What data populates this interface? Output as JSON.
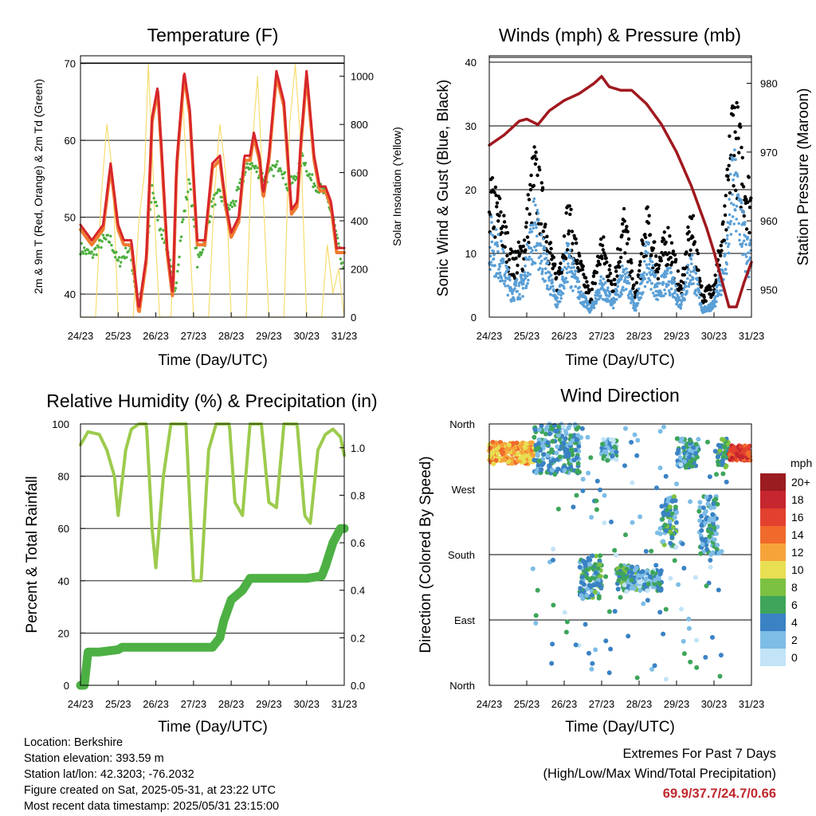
{
  "x_ticks": [
    "24/23",
    "25/23",
    "26/23",
    "27/23",
    "28/23",
    "29/23",
    "30/23",
    "31/23"
  ],
  "temperature_panel": {
    "title": "Temperature (F)",
    "xlabel": "Time (Day/UTC)",
    "ylabel_left": "2m & 9m T (Red, Orange) & 2m Td (Green)",
    "ylabel_right": "Solar Insolation (Yellow)",
    "yticks_left": [
      "40",
      "50",
      "60",
      "70"
    ],
    "yticks_right": [
      "0",
      "200",
      "400",
      "600",
      "800",
      "1000"
    ]
  },
  "winds_panel": {
    "title": "Winds (mph) & Pressure (mb)",
    "xlabel": "Time (Day/UTC)",
    "ylabel_left": "Sonic Wind & Gust (Blue, Black)",
    "ylabel_right": "Station Pressure (Maroon)",
    "yticks_left": [
      "0",
      "10",
      "20",
      "30",
      "40"
    ],
    "yticks_right": [
      "950",
      "960",
      "970",
      "980"
    ]
  },
  "humidity_panel": {
    "title": "Relative Humidity (%) & Precipitation (in)",
    "xlabel": "Time (Day/UTC)",
    "ylabel_left": "Percent & Total Rainfall",
    "yticks_left": [
      "0",
      "20",
      "40",
      "60",
      "80",
      "100"
    ],
    "yticks_right": [
      "0.0",
      "0.2",
      "0.4",
      "0.6",
      "0.8",
      "1.0"
    ]
  },
  "direction_panel": {
    "title": "Wind Direction",
    "xlabel": "Time (Day/UTC)",
    "ylabel_left": "Direction (Colored By Speed)",
    "yticks_left": [
      "North",
      "East",
      "South",
      "West",
      "North"
    ],
    "legend_title": "mph",
    "legend_labels": [
      "20+",
      "18",
      "16",
      "14",
      "12",
      "10",
      "8",
      "6",
      "4",
      "2",
      "0"
    ],
    "legend_colors": [
      "#9b1c20",
      "#c6262e",
      "#e3412f",
      "#f06a2c",
      "#f6a43a",
      "#e8df52",
      "#7cc142",
      "#3ea55a",
      "#3a82c4",
      "#7dbde6",
      "#c2e4f6"
    ]
  },
  "station": {
    "location": "Location: Berkshire",
    "elevation": "Station elevation: 393.59 m",
    "latlon": "Station lat/lon: 42.3203; -76.2032",
    "created": "Figure created on Sat, 2025-05-31, at 23:22 UTC",
    "recent": "Most recent data timestamp: 2025/05/31 23:15:00"
  },
  "extremes": {
    "title": "Extremes For Past 7 Days",
    "subtitle": "(High/Low/Max Wind/Total Precipitation)",
    "values": "69.9/37.7/24.7/0.66"
  },
  "colors": {
    "temp_2m": "#d7262b",
    "temp_9m": "#f07a2f",
    "dewpoint": "#4daf3f",
    "solar": "#f7dc6f",
    "wind": "#5a9fd6",
    "gust": "#000000",
    "pressure": "#a0191f",
    "humidity": "#9ccb4d",
    "rainfall": "#4db044"
  },
  "chart_data": [
    {
      "type": "line",
      "title": "Temperature (F)",
      "xlabel": "Time (Day/UTC)",
      "ylabel": "2m & 9m T (Red, Orange) & 2m Td (Green)",
      "y2label": "Solar Insolation (Yellow)",
      "xlim": [
        0,
        7
      ],
      "ylim": [
        37,
        71
      ],
      "y2lim": [
        0,
        1085
      ],
      "series": [
        {
          "name": "2m T",
          "x": [
            0,
            0.3,
            0.6,
            0.8,
            1.0,
            1.15,
            1.35,
            1.55,
            1.75,
            1.9,
            2.05,
            2.15,
            2.3,
            2.45,
            2.55,
            2.75,
            2.9,
            3.1,
            3.3,
            3.5,
            3.7,
            3.85,
            4.0,
            4.2,
            4.35,
            4.5,
            4.6,
            4.75,
            4.85,
            5.0,
            5.2,
            5.4,
            5.6,
            5.75,
            5.85,
            6.0,
            6.2,
            6.35,
            6.5,
            6.65,
            6.8,
            7.0
          ],
          "y": [
            49,
            47,
            49,
            57,
            49,
            47,
            47,
            38,
            45,
            63,
            67,
            59,
            46,
            40,
            57,
            69,
            64,
            47,
            47,
            57,
            58,
            52,
            48,
            50,
            58,
            58,
            61,
            58,
            53,
            58,
            69,
            65,
            51,
            52,
            60,
            69,
            58,
            54,
            54,
            52,
            46,
            46
          ]
        },
        {
          "name": "2m Td",
          "x": [
            0,
            0.3,
            0.6,
            0.8,
            1.0,
            1.3,
            1.55,
            1.75,
            1.9,
            2.1,
            2.3,
            2.5,
            2.7,
            2.9,
            3.1,
            3.3,
            3.5,
            3.7,
            3.9,
            4.1,
            4.3,
            4.5,
            4.7,
            4.9,
            5.1,
            5.3,
            5.5,
            5.7,
            5.9,
            6.1,
            6.3,
            6.5,
            6.7,
            6.85,
            7.0
          ],
          "y": [
            46,
            45,
            47,
            47,
            44,
            46,
            38,
            44,
            54,
            49,
            46,
            40,
            49,
            55,
            44,
            47,
            52,
            53,
            51,
            52,
            55,
            57,
            56,
            55,
            56,
            57,
            54,
            55,
            58,
            55,
            54,
            53,
            50,
            46,
            42
          ]
        },
        {
          "name": "Solar Insolation",
          "x": [
            0,
            0.4,
            0.55,
            0.7,
            0.85,
            1.0,
            1.4,
            1.55,
            1.7,
            1.8,
            1.9,
            2.0,
            2.1,
            2.4,
            2.55,
            2.7,
            2.85,
            3.0,
            3.4,
            3.55,
            3.7,
            3.85,
            4.0,
            4.4,
            4.55,
            4.7,
            4.85,
            5.0,
            5.4,
            5.55,
            5.7,
            5.85,
            6.0,
            6.4,
            6.55,
            6.7,
            6.85,
            7.0
          ],
          "y": [
            0,
            0,
            500,
            800,
            600,
            0,
            0,
            400,
            600,
            1050,
            700,
            300,
            0,
            0,
            600,
            950,
            500,
            0,
            0,
            500,
            800,
            600,
            0,
            0,
            700,
            1000,
            500,
            0,
            0,
            800,
            1050,
            700,
            0,
            0,
            300,
            100,
            200,
            0
          ]
        }
      ]
    },
    {
      "type": "line",
      "title": "Winds (mph) & Pressure (mb)",
      "xlabel": "Time (Day/UTC)",
      "ylabel": "Sonic Wind & Gust (Blue, Black)",
      "y2label": "Station Pressure (Maroon)",
      "xlim": [
        0,
        7
      ],
      "ylim": [
        0,
        41
      ],
      "y2lim": [
        946,
        984
      ],
      "series": [
        {
          "name": "Sonic Wind",
          "x": [
            0,
            0.3,
            0.6,
            0.9,
            1.2,
            1.5,
            1.8,
            2.1,
            2.4,
            2.7,
            3.0,
            3.3,
            3.6,
            3.9,
            4.2,
            4.5,
            4.8,
            5.1,
            5.4,
            5.7,
            6.0,
            6.3,
            6.5,
            6.7,
            6.85,
            7.0
          ],
          "y": [
            12,
            9,
            4,
            5,
            14,
            8,
            2,
            9,
            4,
            1,
            5,
            2,
            7,
            1,
            9,
            4,
            6,
            2,
            8,
            1,
            2,
            8,
            20,
            16,
            10,
            9
          ]
        },
        {
          "name": "Gust",
          "x": [
            0,
            0.3,
            0.6,
            0.9,
            1.2,
            1.5,
            1.8,
            2.1,
            2.4,
            2.7,
            3.0,
            3.3,
            3.6,
            3.9,
            4.2,
            4.5,
            4.8,
            5.1,
            5.4,
            5.7,
            6.0,
            6.3,
            6.5,
            6.7,
            6.85,
            7.0
          ],
          "y": [
            18,
            15,
            8,
            10,
            22,
            14,
            5,
            15,
            8,
            3,
            11,
            5,
            14,
            3,
            14,
            8,
            12,
            4,
            14,
            3,
            5,
            14,
            30,
            24,
            20,
            17
          ]
        },
        {
          "name": "Station Pressure",
          "x": [
            0,
            0.4,
            0.8,
            1.0,
            1.3,
            1.6,
            2.0,
            2.4,
            2.8,
            3.0,
            3.2,
            3.5,
            3.8,
            4.2,
            4.6,
            5.0,
            5.4,
            5.8,
            6.0,
            6.2,
            6.4,
            6.6,
            6.8,
            7.0
          ],
          "y": [
            971,
            972.5,
            974.5,
            974.8,
            974,
            976,
            977.5,
            978.5,
            980,
            981,
            979.5,
            979,
            979,
            977,
            974,
            970,
            965,
            959,
            955.5,
            951.5,
            947.5,
            947.5,
            951,
            954
          ]
        }
      ]
    },
    {
      "type": "line",
      "title": "Relative Humidity (%) & Precipitation (in)",
      "xlabel": "Time (Day/UTC)",
      "ylabel": "Percent & Total Rainfall",
      "xlim": [
        0,
        7
      ],
      "ylim": [
        0,
        100
      ],
      "y2lim": [
        0,
        1.1
      ],
      "series": [
        {
          "name": "Relative Humidity",
          "x": [
            0,
            0.2,
            0.5,
            0.7,
            0.9,
            1.0,
            1.2,
            1.35,
            1.55,
            1.75,
            1.9,
            2.0,
            2.2,
            2.4,
            2.6,
            2.8,
            3.0,
            3.2,
            3.4,
            3.6,
            3.75,
            3.95,
            4.1,
            4.3,
            4.5,
            4.7,
            4.8,
            5.0,
            5.2,
            5.4,
            5.6,
            5.75,
            5.95,
            6.1,
            6.3,
            6.5,
            6.7,
            6.9,
            7.0
          ],
          "y": [
            92,
            97,
            96,
            90,
            80,
            65,
            90,
            98,
            100,
            100,
            60,
            45,
            80,
            100,
            100,
            100,
            40,
            40,
            90,
            100,
            100,
            100,
            70,
            65,
            100,
            100,
            100,
            70,
            68,
            100,
            100,
            100,
            65,
            62,
            90,
            96,
            98,
            95,
            88
          ]
        },
        {
          "name": "Total Rainfall",
          "x": [
            0,
            0.1,
            0.2,
            0.5,
            1.0,
            1.1,
            2.0,
            3.0,
            3.5,
            3.7,
            3.8,
            4.0,
            4.3,
            4.5,
            5.0,
            5.5,
            6.0,
            6.4,
            6.5,
            6.6,
            6.7,
            6.8,
            6.9,
            7.0
          ],
          "y": [
            0,
            0,
            0.14,
            0.14,
            0.15,
            0.16,
            0.16,
            0.16,
            0.16,
            0.2,
            0.27,
            0.36,
            0.4,
            0.45,
            0.45,
            0.45,
            0.45,
            0.46,
            0.5,
            0.55,
            0.6,
            0.63,
            0.66,
            0.66
          ]
        }
      ]
    },
    {
      "type": "scatter",
      "title": "Wind Direction",
      "xlabel": "Time (Day/UTC)",
      "ylabel": "Direction (Colored By Speed)",
      "xlim": [
        0,
        7
      ],
      "ylim": [
        0,
        360
      ],
      "color_by": "speed (mph)",
      "legend": {
        "title": "mph",
        "labels": [
          "20+",
          "18",
          "16",
          "14",
          "12",
          "10",
          "8",
          "6",
          "4",
          "2",
          "0"
        ]
      },
      "clusters": [
        {
          "x_range": [
            0,
            1.2
          ],
          "dir_range": [
            305,
            335
          ],
          "speed": 12
        },
        {
          "x_range": [
            1.2,
            2.4
          ],
          "dir_range": [
            290,
            360
          ],
          "speed": 4
        },
        {
          "x_range": [
            2.4,
            3.0
          ],
          "dir_range": [
            120,
            180
          ],
          "speed": 5
        },
        {
          "x_range": [
            3.0,
            3.4
          ],
          "dir_range": [
            310,
            340
          ],
          "speed": 3
        },
        {
          "x_range": [
            3.4,
            4.0
          ],
          "dir_range": [
            130,
            165
          ],
          "speed": 5
        },
        {
          "x_range": [
            4.0,
            4.6
          ],
          "dir_range": [
            130,
            160
          ],
          "speed": 3
        },
        {
          "x_range": [
            4.6,
            5.0
          ],
          "dir_range": [
            190,
            260
          ],
          "speed": 5
        },
        {
          "x_range": [
            5.0,
            5.6
          ],
          "dir_range": [
            300,
            340
          ],
          "speed": 4
        },
        {
          "x_range": [
            5.6,
            6.1
          ],
          "dir_range": [
            180,
            260
          ],
          "speed": 4
        },
        {
          "x_range": [
            6.1,
            6.4
          ],
          "dir_range": [
            300,
            340
          ],
          "speed": 6
        },
        {
          "x_range": [
            6.4,
            7.0
          ],
          "dir_range": [
            310,
            330
          ],
          "speed": 16
        }
      ]
    }
  ]
}
